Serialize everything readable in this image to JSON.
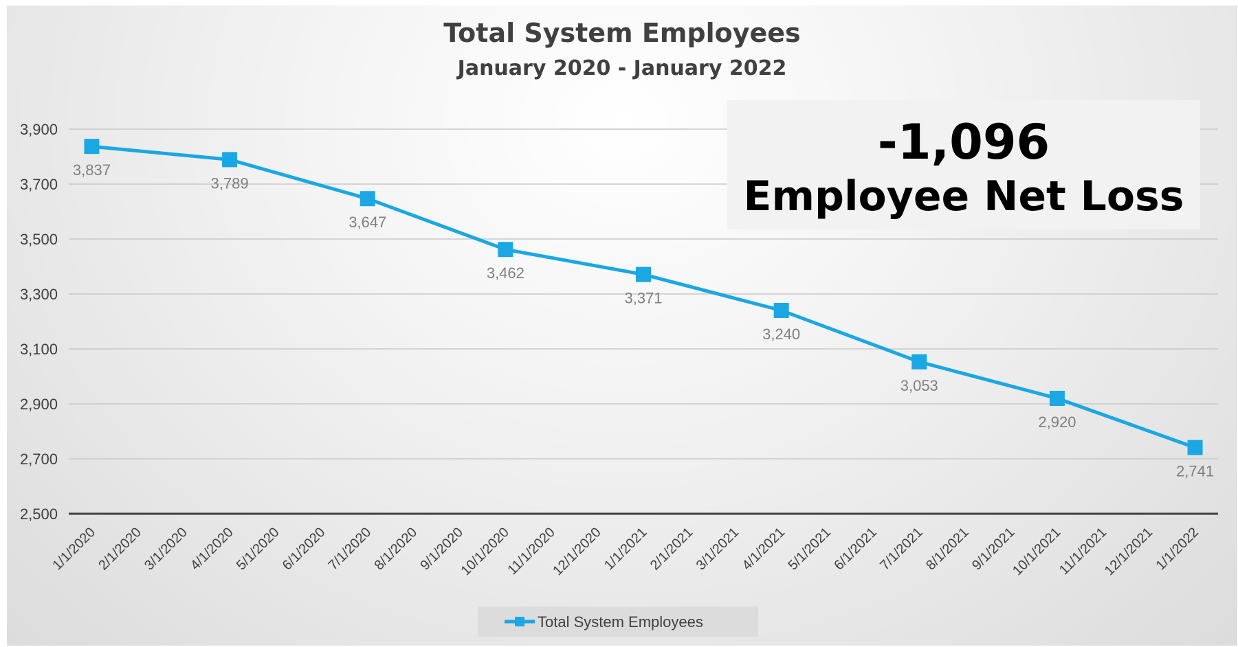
{
  "chart_data": {
    "type": "line",
    "title": "Total System Employees",
    "subtitle": "January 2020 - January 2022",
    "categories": [
      "1/1/2020",
      "2/1/2020",
      "3/1/2020",
      "4/1/2020",
      "5/1/2020",
      "6/1/2020",
      "7/1/2020",
      "8/1/2020",
      "9/1/2020",
      "10/1/2020",
      "11/1/2020",
      "12/1/2020",
      "1/1/2021",
      "2/1/2021",
      "3/1/2021",
      "4/1/2021",
      "5/1/2021",
      "6/1/2021",
      "7/1/2021",
      "8/1/2021",
      "9/1/2021",
      "10/1/2021",
      "11/1/2021",
      "12/1/2021",
      "1/1/2022"
    ],
    "series": [
      {
        "name": "Total System Employees",
        "color": "#1ba7e4",
        "marker": "square",
        "points": [
          {
            "x": "1/1/2020",
            "y": 3837,
            "label": "3,837"
          },
          {
            "x": "4/1/2020",
            "y": 3789,
            "label": "3,789"
          },
          {
            "x": "7/1/2020",
            "y": 3647,
            "label": "3,647"
          },
          {
            "x": "10/1/2020",
            "y": 3462,
            "label": "3,462"
          },
          {
            "x": "1/1/2021",
            "y": 3371,
            "label": "3,371"
          },
          {
            "x": "4/1/2021",
            "y": 3240,
            "label": "3,240"
          },
          {
            "x": "7/1/2021",
            "y": 3053,
            "label": "3,053"
          },
          {
            "x": "10/1/2021",
            "y": 2920,
            "label": "2,920"
          },
          {
            "x": "1/1/2022",
            "y": 2741,
            "label": "2,741"
          }
        ]
      }
    ],
    "ylim": [
      2500,
      3900
    ],
    "yticks": [
      2500,
      2700,
      2900,
      3100,
      3300,
      3500,
      3700,
      3900
    ],
    "ytick_labels": [
      "2,500",
      "2,700",
      "2,900",
      "3,100",
      "3,300",
      "3,500",
      "3,700",
      "3,900"
    ],
    "grid": true,
    "legend": "bottom",
    "xlabel": "",
    "ylabel": ""
  },
  "callout": {
    "value": "-1,096",
    "text": "Employee Net Loss"
  },
  "colors": {
    "line": "#1ba7e4",
    "grid": "#c9c9c9",
    "axis": "#404040"
  }
}
